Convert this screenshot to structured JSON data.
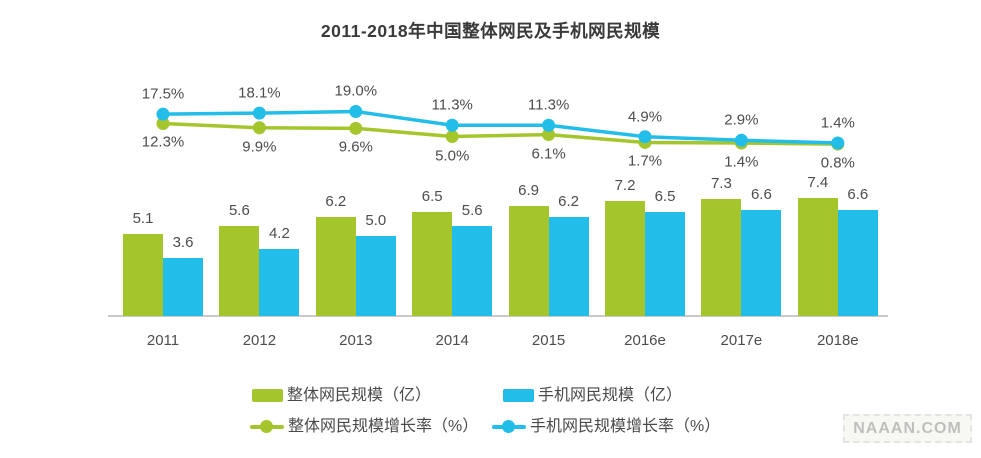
{
  "title": "2011-2018年中国整体网民及手机网民规模",
  "watermark": "NAAAN.COM",
  "colors": {
    "overall_green": "#a4c62c",
    "mobile_blue": "#23bdea",
    "title_text": "#3a3a3a",
    "label_text": "#4d4d4d",
    "axis_line": "#c9c9c9",
    "watermark_text": "#bfbfbc"
  },
  "chart_data": {
    "type": "bar+line",
    "title": "2011-2018年中国整体网民及手机网民规模",
    "categories": [
      "2011",
      "2012",
      "2013",
      "2014",
      "2015",
      "2016e",
      "2017e",
      "2018e"
    ],
    "series": [
      {
        "key": "overall-users",
        "name": "整体网民规模（亿）",
        "type": "bar",
        "unit": "亿",
        "color": "#a4c62c",
        "values": [
          5.1,
          5.6,
          6.2,
          6.5,
          6.9,
          7.2,
          7.3,
          7.4
        ]
      },
      {
        "key": "mobile-users",
        "name": "手机网民规模（亿）",
        "type": "bar",
        "unit": "亿",
        "color": "#23bdea",
        "values": [
          3.6,
          4.2,
          5.0,
          5.6,
          6.2,
          6.5,
          6.6,
          6.6
        ]
      },
      {
        "key": "overall-growth",
        "name": "整体网民规模增长率（%）",
        "type": "line",
        "unit": "%",
        "color": "#a4c62c",
        "label_side": "below",
        "values": [
          12.3,
          9.9,
          9.6,
          5.0,
          6.1,
          1.7,
          1.4,
          0.8
        ]
      },
      {
        "key": "mobile-growth",
        "name": "手机网民规模增长率（%）",
        "type": "line",
        "unit": "%",
        "color": "#23bdea",
        "label_side": "above",
        "values": [
          17.5,
          18.1,
          19.0,
          11.3,
          11.3,
          4.9,
          2.9,
          1.4
        ]
      }
    ],
    "value_labels": true,
    "grid": false,
    "axes_visible": "x-only",
    "legend_position": "bottom"
  }
}
